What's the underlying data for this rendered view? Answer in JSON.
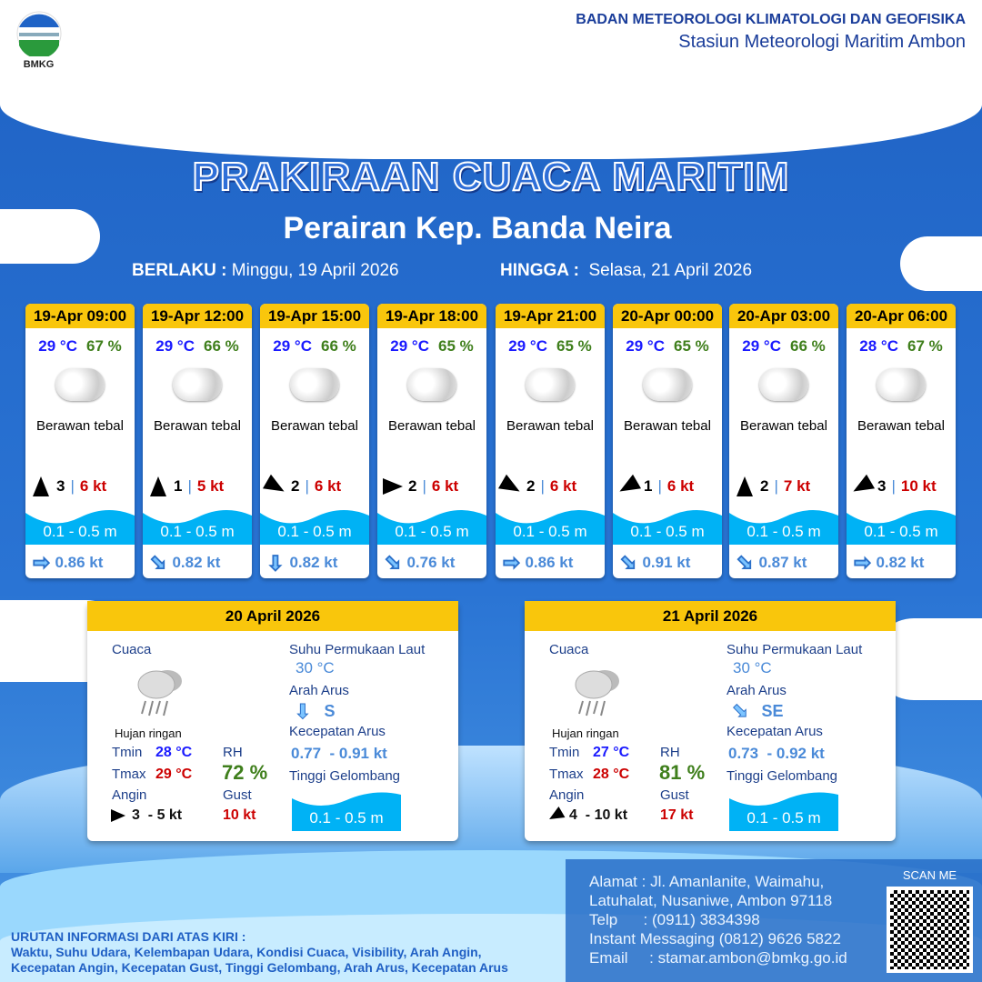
{
  "header": {
    "logo_text": "BMKG",
    "agency": "BADAN METEOROLOGI KLIMATOLOGI DAN GEOFISIKA",
    "station": "Stasiun Meteorologi Maritim Ambon"
  },
  "title": "PRAKIRAAN CUACA MARITIM",
  "area": "Perairan Kep. Banda Neira",
  "validity": {
    "from_label": "BERLAKU :",
    "from": "Minggu, 19 April 2026",
    "to_label": "HINGGA :",
    "to": "Selasa, 21 April 2026"
  },
  "colors": {
    "header_yellow": "#f9c60c",
    "temp": "#1a1aff",
    "humidity": "#3f7f1c",
    "gust": "#cc0000",
    "wave": "#00b2f5",
    "current": "#4a8ad8"
  },
  "forecasts": [
    {
      "time": "19-Apr 09:00",
      "temp": "29 °C",
      "rh": "67 %",
      "weather": "Berawan tebal",
      "wind_arrow_deg": 180,
      "wind": "3",
      "gust": "6 kt",
      "wave": "0.1 - 0.5 m",
      "current_arrow_deg": 90,
      "current": "0.86 kt"
    },
    {
      "time": "19-Apr 12:00",
      "temp": "29 °C",
      "rh": "66 %",
      "weather": "Berawan tebal",
      "wind_arrow_deg": 180,
      "wind": "1",
      "gust": "5 kt",
      "wave": "0.1 - 0.5 m",
      "current_arrow_deg": 135,
      "current": "0.82 kt"
    },
    {
      "time": "19-Apr 15:00",
      "temp": "29 °C",
      "rh": "66 %",
      "weather": "Berawan tebal",
      "wind_arrow_deg": -60,
      "wind": "2",
      "gust": "6 kt",
      "wave": "0.1 - 0.5 m",
      "current_arrow_deg": 180,
      "current": "0.82 kt"
    },
    {
      "time": "19-Apr 18:00",
      "temp": "29 °C",
      "rh": "65 %",
      "weather": "Berawan tebal",
      "wind_arrow_deg": -90,
      "wind": "2",
      "gust": "6 kt",
      "wave": "0.1 - 0.5 m",
      "current_arrow_deg": 135,
      "current": "0.76 kt"
    },
    {
      "time": "19-Apr 21:00",
      "temp": "29 °C",
      "rh": "65 %",
      "weather": "Berawan tebal",
      "wind_arrow_deg": -60,
      "wind": "2",
      "gust": "6 kt",
      "wave": "0.1 - 0.5 m",
      "current_arrow_deg": 90,
      "current": "0.86 kt"
    },
    {
      "time": "20-Apr 00:00",
      "temp": "29 °C",
      "rh": "65 %",
      "weather": "Berawan tebal",
      "wind_arrow_deg": 60,
      "wind": "1",
      "gust": "6 kt",
      "wave": "0.1 - 0.5 m",
      "current_arrow_deg": 135,
      "current": "0.91 kt"
    },
    {
      "time": "20-Apr 03:00",
      "temp": "29 °C",
      "rh": "66 %",
      "weather": "Berawan tebal",
      "wind_arrow_deg": 180,
      "wind": "2",
      "gust": "7 kt",
      "wave": "0.1 - 0.5 m",
      "current_arrow_deg": 135,
      "current": "0.87 kt"
    },
    {
      "time": "20-Apr 06:00",
      "temp": "28 °C",
      "rh": "67 %",
      "weather": "Berawan tebal",
      "wind_arrow_deg": 60,
      "wind": "3",
      "gust": "10 kt",
      "wave": "0.1 - 0.5 m",
      "current_arrow_deg": 90,
      "current": "0.82 kt"
    }
  ],
  "daily": [
    {
      "date": "20 April 2026",
      "cuaca_label": "Cuaca",
      "weather": "Hujan ringan",
      "tmin_label": "Tmin",
      "tmin": "28 °C",
      "tmax_label": "Tmax",
      "tmax": "29 °C",
      "rh_label": "RH",
      "rh": "72 %",
      "angin_label": "Angin",
      "wind_arrow_deg": -90,
      "wind": "3  - 5 kt",
      "gust_label": "Gust",
      "gust": "10 kt",
      "sst_label": "Suhu Permukaan Laut",
      "sst": "30 °C",
      "arus_label": "Arah Arus",
      "arus_arrow_deg": 180,
      "arus": "S",
      "kec_label": "Kecepatan Arus",
      "kec": "0.77  - 0.91 kt",
      "wave_label": "Tinggi Gelombang",
      "wave": "0.1 - 0.5 m"
    },
    {
      "date": "21 April 2026",
      "cuaca_label": "Cuaca",
      "weather": "Hujan ringan",
      "tmin_label": "Tmin",
      "tmin": "27 °C",
      "tmax_label": "Tmax",
      "tmax": "28 °C",
      "rh_label": "RH",
      "rh": "81 %",
      "angin_label": "Angin",
      "wind_arrow_deg": 60,
      "wind": "4  - 10 kt",
      "gust_label": "Gust",
      "gust": "17 kt",
      "sst_label": "Suhu Permukaan Laut",
      "sst": "30 °C",
      "arus_label": "Arah Arus",
      "arus_arrow_deg": 135,
      "arus": "SE",
      "kec_label": "Kecepatan Arus",
      "kec": "0.73  - 0.92 kt",
      "wave_label": "Tinggi Gelombang",
      "wave": "0.1 - 0.5 m"
    }
  ],
  "legend": {
    "title": "URUTAN INFORMASI DARI ATAS KIRI :",
    "line1": "Waktu, Suhu Udara, Kelembapan Udara, Kondisi Cuaca, Visibility, Arah Angin,",
    "line2": "Kecepatan Angin, Kecepatan Gust, Tinggi Gelombang, Arah Arus, Kecepatan Arus"
  },
  "contact": {
    "address1": "Alamat : Jl. Amanlanite, Waimahu,",
    "address2": "Latuhalat, Nusaniwe, Ambon 97118",
    "telp": "Telp      : (0911) 3834398",
    "im": "Instant Messaging (0812) 9626 5822",
    "email": "Email     : stamar.ambon@bmkg.go.id",
    "scan": "SCAN ME"
  }
}
